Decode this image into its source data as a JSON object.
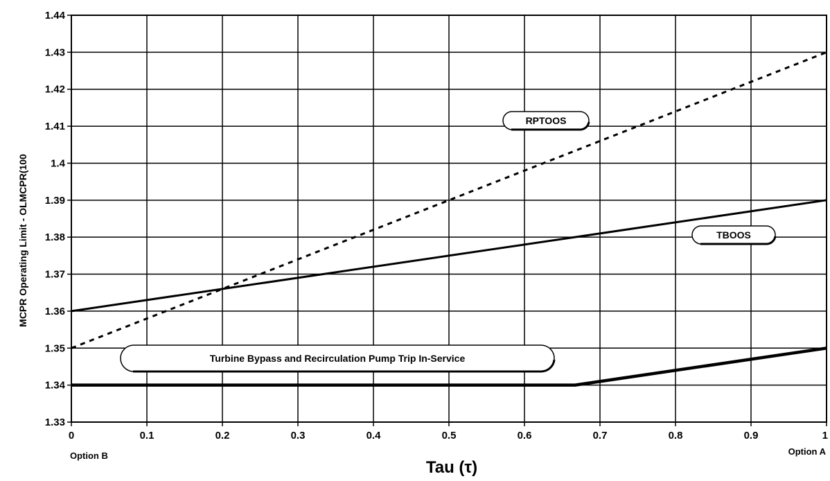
{
  "chart_data": {
    "type": "line",
    "title": "",
    "xlabel": "Tau  (τ)",
    "ylabel": "MCPR Operating Limit - OLMCPR(100",
    "xlim": [
      0,
      1
    ],
    "ylim": [
      1.33,
      1.44
    ],
    "x_ticks": [
      "0",
      "0.1",
      "0.2",
      "0.3",
      "0.4",
      "0.5",
      "0.6",
      "0.7",
      "0.8",
      "0.9",
      "1"
    ],
    "y_ticks": [
      "1.33",
      "1.34",
      "1.35",
      "1.36",
      "1.37",
      "1.38",
      "1.39",
      "1.4",
      "1.41",
      "1.42",
      "1.43",
      "1.44"
    ],
    "x_sub_labels": {
      "left": "Option B",
      "right": "Option A"
    },
    "grid": true,
    "series": [
      {
        "name": "RPTOOS",
        "style": "dotted",
        "x": [
          0,
          1
        ],
        "y": [
          1.35,
          1.43
        ]
      },
      {
        "name": "TBOOS",
        "style": "solid",
        "x": [
          0,
          1
        ],
        "y": [
          1.36,
          1.39
        ]
      },
      {
        "name": "Turbine Bypass and Recirculation Pump Trip In-Service",
        "style": "solid-thick",
        "x": [
          0,
          0.667,
          1
        ],
        "y": [
          1.34,
          1.34,
          1.35
        ]
      }
    ],
    "annotations": [
      "RPTOOS",
      "TBOOS",
      "Turbine Bypass and Recirculation Pump Trip In-Service"
    ]
  }
}
